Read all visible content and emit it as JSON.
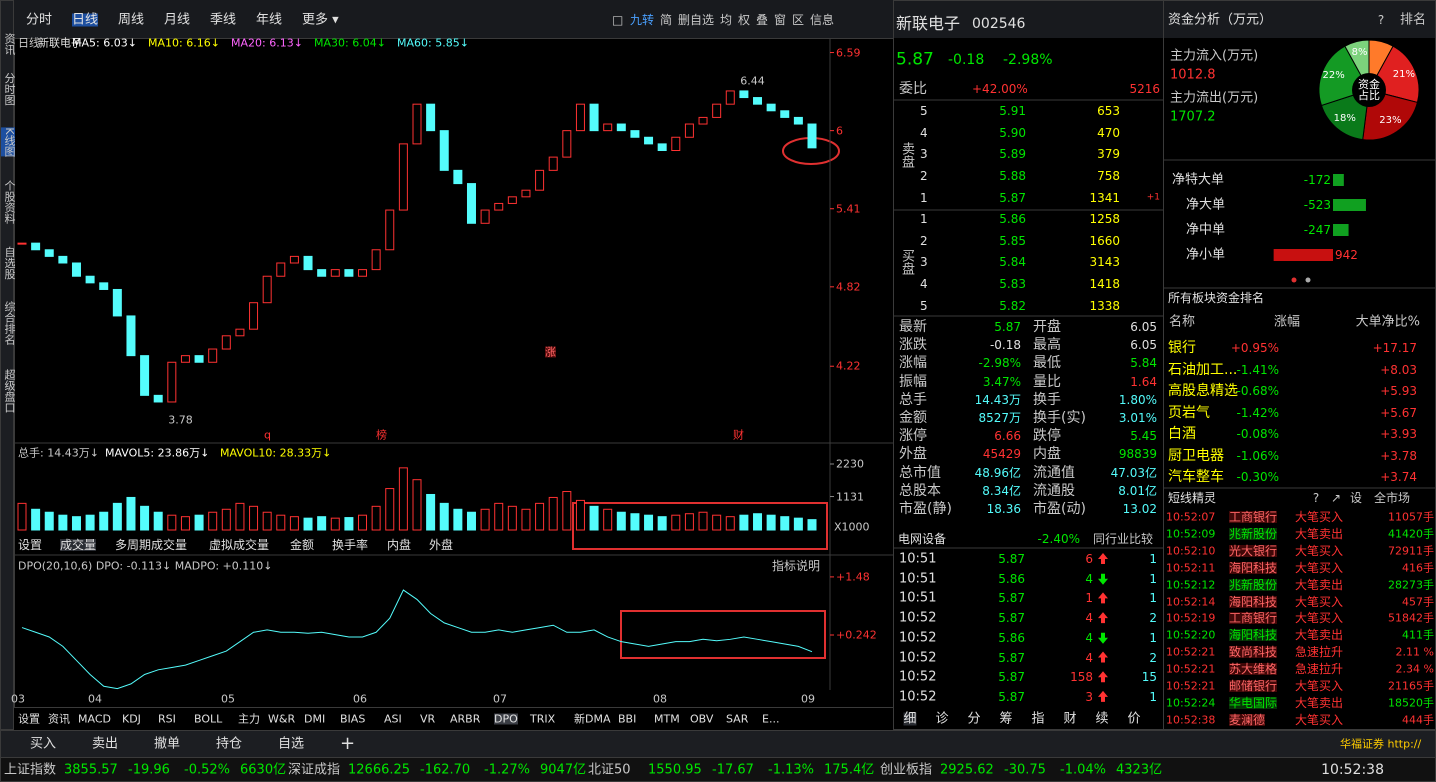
{
  "top_tabs": [
    "分时",
    "日线",
    "周线",
    "月线",
    "季线",
    "年线",
    "更多 ▾"
  ],
  "toolbar": [
    "□",
    "九转",
    "简",
    "删自选",
    "均",
    "权",
    "叠",
    "窗",
    "区",
    "信息"
  ],
  "side_tabs": [
    "资讯",
    "分时图",
    "K线图",
    "个股资料",
    "自选股",
    "综合排名",
    "超级盘口"
  ],
  "kline": {
    "legend": [
      "日线",
      "新联电子",
      "MA5: 6.03↓",
      "MA10: 6.16↓",
      "MA20: 6.13↓",
      "MA30: 6.04↓",
      "MA60: 5.85↓"
    ],
    "ylim": [
      3.64,
      6.7
    ],
    "yticks": [
      6.59,
      6.0,
      5.41,
      4.82,
      4.22
    ],
    "high_label": "6.44",
    "low_label": "3.78",
    "markers": [
      "q",
      "榜",
      "财",
      "涨"
    ],
    "closes": [
      5.15,
      5.1,
      5.05,
      5.0,
      4.9,
      4.85,
      4.8,
      4.6,
      4.3,
      4.0,
      3.95,
      4.25,
      4.3,
      4.25,
      4.35,
      4.45,
      4.5,
      4.7,
      4.9,
      5.0,
      5.05,
      4.95,
      4.9,
      4.95,
      4.9,
      4.95,
      5.1,
      5.4,
      5.9,
      6.2,
      6.0,
      5.7,
      5.6,
      5.3,
      5.4,
      5.45,
      5.5,
      5.55,
      5.7,
      5.8,
      6.0,
      6.2,
      6.0,
      6.05,
      6.0,
      5.95,
      5.9,
      5.85,
      5.95,
      6.05,
      6.1,
      6.2,
      6.3,
      6.25,
      6.2,
      6.15,
      6.1,
      6.05,
      5.87
    ],
    "up_color": "#ff3232",
    "down_color": "#54fcfc"
  },
  "volume": {
    "legend": [
      "总手: 14.43万↓",
      "MAVOL5: 23.86万↓",
      "MAVOL10: 28.33万↓"
    ],
    "ylim": [
      0,
      2230
    ],
    "yticks": [
      2230,
      1131
    ],
    "unit": "X1000",
    "values": [
      900,
      700,
      600,
      500,
      450,
      500,
      600,
      900,
      1100,
      800,
      600,
      500,
      450,
      500,
      600,
      700,
      900,
      800,
      600,
      500,
      450,
      400,
      450,
      400,
      420,
      500,
      800,
      1400,
      2100,
      1700,
      1200,
      900,
      700,
      600,
      700,
      900,
      800,
      700,
      900,
      1100,
      1300,
      1000,
      800,
      700,
      600,
      550,
      500,
      450,
      500,
      550,
      600,
      500,
      450,
      500,
      550,
      500,
      450,
      400,
      350
    ],
    "tabs": [
      "设置",
      "成交量",
      "多周期成交量",
      "虚拟成交量",
      "金额",
      "换手率",
      "内盘",
      "外盘"
    ]
  },
  "dpo": {
    "legend": "DPO(20,10,6) DPO: -0.113↓ MADPO: +0.110↓",
    "help": "指标说明",
    "ylim": [
      -0.93,
      1.84
    ],
    "yticks": [
      {
        "value": 1.48,
        "label": "+1.48"
      },
      {
        "value": 0.242,
        "label": "+0.242"
      }
    ],
    "values": [
      0.4,
      0.3,
      0.2,
      0.0,
      -0.3,
      -0.6,
      -0.85,
      -0.9,
      -0.8,
      -0.6,
      -0.5,
      -0.45,
      -0.4,
      -0.3,
      -0.2,
      -0.1,
      0.1,
      0.3,
      0.35,
      0.3,
      0.3,
      0.28,
      0.3,
      0.25,
      0.2,
      0.2,
      0.3,
      0.6,
      1.2,
      1.0,
      0.7,
      0.5,
      0.4,
      0.3,
      0.3,
      0.35,
      0.3,
      0.35,
      0.4,
      0.45,
      0.3,
      0.3,
      0.35,
      0.2,
      0.1,
      0.05,
      0.0,
      0.05,
      0.1,
      0.1,
      0.15,
      0.12,
      0.15,
      0.2,
      0.15,
      0.1,
      0.05,
      0.0,
      -0.113
    ],
    "color": "#54fcfc",
    "months": [
      "03",
      "04",
      "05",
      "06",
      "07",
      "08",
      "09"
    ]
  },
  "indicator_tabs": [
    "设置",
    "资讯",
    "MACD",
    "KDJ",
    "RSI",
    "BOLL",
    "主力",
    "W&R",
    "DMI",
    "BIAS",
    "ASI",
    "VR",
    "ARBR",
    "DPO",
    "TRIX",
    "新DMA",
    "BBI",
    "MTM",
    "OBV",
    "SAR",
    "E..."
  ],
  "actions": [
    "买入",
    "卖出",
    "撤单",
    "持仓",
    "自选",
    "+"
  ],
  "status": [
    [
      "上证指数",
      "3855.57",
      "-19.96",
      "-0.52%",
      "6630亿"
    ],
    [
      "深证成指",
      "12666.25",
      "-162.70",
      "-1.27%",
      "9047亿"
    ],
    [
      "北证50",
      "1550.95",
      "-17.67",
      "-1.13%",
      "175.4亿"
    ],
    [
      "创业板指",
      "2925.62",
      "-30.75",
      "-1.04%",
      "4323亿"
    ]
  ],
  "clock": "10:52:38",
  "broker": "华福证券 http://",
  "quote": {
    "name": "新联电子",
    "code": "002546",
    "price": "5.87",
    "change": "-0.18",
    "pct": "-2.98%",
    "weibi_label": "委比",
    "weibi": "+42.00%",
    "weicha": "5216",
    "sell_label": "卖盘",
    "buy_label": "买盘",
    "sell": [
      [
        "5",
        "5.91",
        "653"
      ],
      [
        "4",
        "5.90",
        "470"
      ],
      [
        "3",
        "5.89",
        "379"
      ],
      [
        "2",
        "5.88",
        "758"
      ],
      [
        "1",
        "5.87",
        "1341"
      ]
    ],
    "sell_note": "+1",
    "buy": [
      [
        "1",
        "5.86",
        "1258"
      ],
      [
        "2",
        "5.85",
        "1660"
      ],
      [
        "3",
        "5.84",
        "3143"
      ],
      [
        "4",
        "5.83",
        "1418"
      ],
      [
        "5",
        "5.82",
        "1338"
      ]
    ],
    "stats": [
      [
        "最新",
        "5.87",
        "开盘",
        "6.05"
      ],
      [
        "涨跌",
        "-0.18",
        "最高",
        "6.05"
      ],
      [
        "涨幅",
        "-2.98%",
        "最低",
        "5.84"
      ],
      [
        "振幅",
        "3.47%",
        "量比",
        "1.64"
      ],
      [
        "总手",
        "14.43万",
        "换手",
        "1.80%"
      ],
      [
        "金额",
        "8527万",
        "换手(实)",
        "3.01%"
      ],
      [
        "涨停",
        "6.66",
        "跌停",
        "5.45"
      ],
      [
        "外盘",
        "45429",
        "内盘",
        "98839"
      ],
      [
        "总市值",
        "48.96亿",
        "流通值",
        "47.03亿"
      ],
      [
        "总股本",
        "8.34亿",
        "流通股",
        "8.01亿"
      ],
      [
        "市盈(静)",
        "18.36",
        "市盈(动)",
        "13.02"
      ]
    ],
    "sector": "电网设备",
    "sector_pct": "-2.40%",
    "compare": "同行业比较",
    "ticks": [
      [
        "10:51",
        "5.87",
        "6",
        "1",
        "up"
      ],
      [
        "10:51",
        "5.86",
        "4",
        "1",
        "down"
      ],
      [
        "10:51",
        "5.87",
        "1",
        "1",
        "up"
      ],
      [
        "10:52",
        "5.87",
        "4",
        "2",
        "up"
      ],
      [
        "10:52",
        "5.86",
        "4",
        "1",
        "down"
      ],
      [
        "10:52",
        "5.87",
        "4",
        "2",
        "up"
      ],
      [
        "10:52",
        "5.87",
        "158",
        "15",
        "up"
      ],
      [
        "10:52",
        "5.87",
        "3",
        "1",
        "up"
      ]
    ],
    "bottom_tabs": [
      "细",
      "诊",
      "分",
      "筹",
      "指",
      "财",
      "续",
      "价"
    ]
  },
  "funds": {
    "title": "资金分析（万元）",
    "help": "?",
    "rank": "排名",
    "in_label": "主力流入(万元)",
    "in_value": "1012.8",
    "out_label": "主力流出(万元)",
    "out_value": "1707.2",
    "pie_center": "资金占比",
    "pie": [
      {
        "value": 8,
        "color": "#ff7a2a"
      },
      {
        "value": 21,
        "value_label": "21%",
        "color": "#e02020"
      },
      {
        "value": 23,
        "value_label": "23%",
        "color": "#b00808"
      },
      {
        "value": 18,
        "value_label": "18%",
        "color": "#0a7a1a"
      },
      {
        "value": 22,
        "value_label": "22%",
        "color": "#149a24"
      },
      {
        "value": 8,
        "value_label": "8%",
        "color": "#7cd27c"
      }
    ],
    "net": [
      {
        "label": "净特大单",
        "value": -172
      },
      {
        "label": "净大单",
        "value": -523
      },
      {
        "label": "净中单",
        "value": -247
      },
      {
        "label": "净小单",
        "value": 942
      }
    ]
  },
  "sectors": {
    "title": "所有板块资金排名",
    "headers": [
      "名称",
      "涨幅",
      "大单净比%"
    ],
    "rows": [
      [
        "银行",
        "+0.95%",
        "+17.17"
      ],
      [
        "石油加工...",
        "-1.41%",
        "+8.03"
      ],
      [
        "高股息精选",
        "-0.68%",
        "+5.93"
      ],
      [
        "页岩气",
        "-1.42%",
        "+5.67"
      ],
      [
        "白酒",
        "-0.08%",
        "+3.93"
      ],
      [
        "厨卫电器",
        "-1.06%",
        "+3.78"
      ],
      [
        "汽车整车",
        "-0.30%",
        "+3.74"
      ]
    ]
  },
  "sprite": {
    "title": "短线精灵",
    "buttons": [
      "?",
      "↗",
      "设",
      "全市场"
    ],
    "rows": [
      [
        "10:52:07",
        "工商银行",
        "大笔买入",
        "11057手"
      ],
      [
        "10:52:09",
        "兆新股份",
        "大笔卖出",
        "41420手"
      ],
      [
        "10:52:10",
        "光大银行",
        "大笔买入",
        "72911手"
      ],
      [
        "10:52:11",
        "海阳科技",
        "大笔买入",
        "416手"
      ],
      [
        "10:52:12",
        "兆新股份",
        "大笔卖出",
        "28273手"
      ],
      [
        "10:52:14",
        "海阳科技",
        "大笔买入",
        "457手"
      ],
      [
        "10:52:19",
        "工商银行",
        "大笔买入",
        "51842手"
      ],
      [
        "10:52:20",
        "海阳科技",
        "大笔卖出",
        "411手"
      ],
      [
        "10:52:21",
        "致尚科技",
        "急速拉升",
        "2.11 %"
      ],
      [
        "10:52:21",
        "苏大维格",
        "急速拉升",
        "2.34 %"
      ],
      [
        "10:52:21",
        "邮储银行",
        "大笔买入",
        "21165手"
      ],
      [
        "10:52:24",
        "华电国际",
        "大笔卖出",
        "18520手"
      ],
      [
        "10:52:38",
        "麦澜德",
        "大笔买入",
        "444手"
      ]
    ]
  }
}
